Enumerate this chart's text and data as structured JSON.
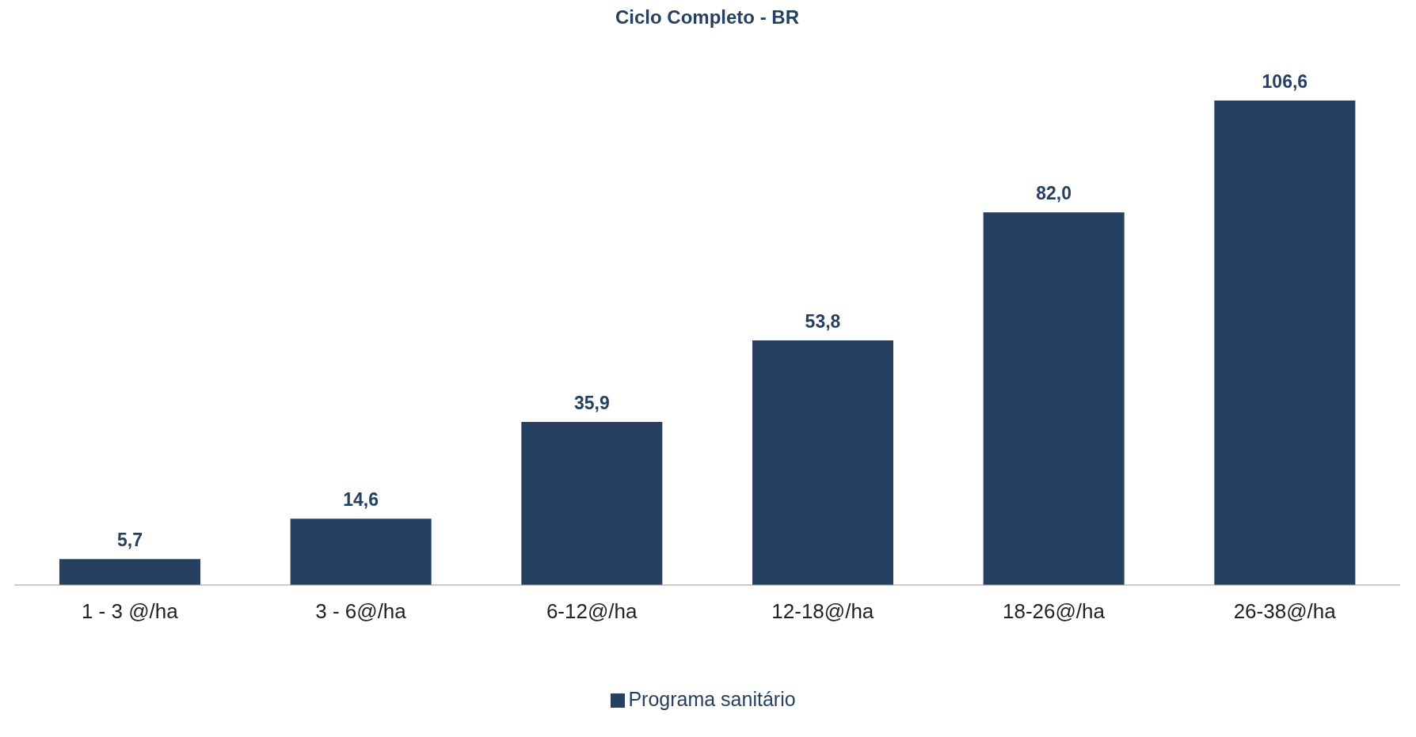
{
  "chart_data": {
    "type": "bar",
    "title": "Ciclo Completo - BR",
    "categories": [
      "1 - 3 @/ha",
      "3 - 6@/ha",
      "6-12@/ha",
      "12-18@/ha",
      "18-26@/ha",
      "26-38@/ha"
    ],
    "series": [
      {
        "name": "Programa sanitário",
        "color": "#264061",
        "values": [
          5.7,
          14.6,
          35.9,
          53.8,
          82.0,
          106.6
        ],
        "value_labels": [
          "5,7",
          "14,6",
          "35,9",
          "53,8",
          "82,0",
          "106,6"
        ]
      }
    ],
    "legend": "bottom",
    "grid": false,
    "tick_labels": "x"
  }
}
